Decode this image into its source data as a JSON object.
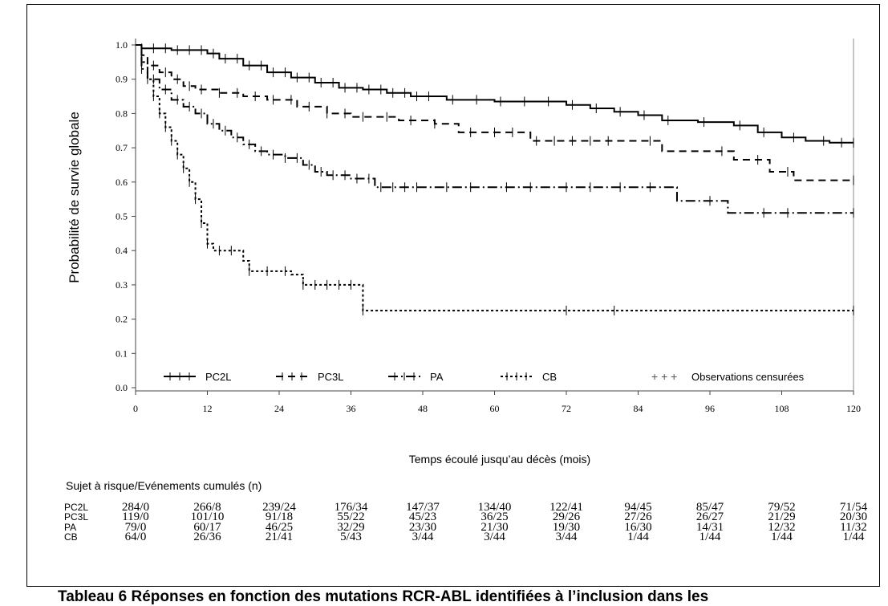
{
  "chart_data": {
    "type": "line",
    "step": true,
    "xlabel": "Temps écoulé jusqu’au décès (mois)",
    "ylabel": "Probabilité de survie globale",
    "xlim": [
      0,
      120
    ],
    "ylim": [
      0,
      1.0
    ],
    "xticks": [
      "0",
      "12",
      "24",
      "36",
      "48",
      "60",
      "72",
      "84",
      "96",
      "108",
      "120"
    ],
    "yticks": [
      "0.0",
      "0.1",
      "0.2",
      "0.3",
      "0.4",
      "0.5",
      "0.6",
      "0.7",
      "0.8",
      "0.9",
      "1.0"
    ],
    "legend": {
      "placement": "bottom-inside",
      "entries": [
        "PC2L",
        "PC3L",
        "PA",
        "CB",
        "Observations censurées"
      ],
      "symbol": "+ + +"
    },
    "series": [
      {
        "name": "PC2L",
        "style": "solid",
        "points": [
          [
            0,
            1.0
          ],
          [
            1,
            0.99
          ],
          [
            6,
            0.985
          ],
          [
            12,
            0.975
          ],
          [
            14,
            0.96
          ],
          [
            18,
            0.94
          ],
          [
            22,
            0.92
          ],
          [
            26,
            0.905
          ],
          [
            30,
            0.89
          ],
          [
            34,
            0.875
          ],
          [
            38,
            0.87
          ],
          [
            42,
            0.86
          ],
          [
            46,
            0.85
          ],
          [
            52,
            0.84
          ],
          [
            60,
            0.835
          ],
          [
            66,
            0.835
          ],
          [
            72,
            0.825
          ],
          [
            76,
            0.815
          ],
          [
            80,
            0.805
          ],
          [
            84,
            0.795
          ],
          [
            88,
            0.78
          ],
          [
            94,
            0.775
          ],
          [
            100,
            0.765
          ],
          [
            104,
            0.745
          ],
          [
            108,
            0.73
          ],
          [
            112,
            0.72
          ],
          [
            116,
            0.715
          ],
          [
            120,
            0.715
          ]
        ],
        "censored": [
          1,
          3,
          5,
          7,
          9,
          11,
          13,
          15,
          17,
          19,
          21,
          23,
          25,
          27,
          29,
          31,
          33,
          35,
          37,
          39,
          41,
          43,
          45,
          47,
          49,
          53,
          57,
          61,
          65,
          69,
          73,
          77,
          81,
          85,
          89,
          95,
          101,
          105,
          110,
          115,
          118,
          120
        ]
      },
      {
        "name": "PC3L",
        "style": "dashed",
        "points": [
          [
            0,
            1.0
          ],
          [
            1,
            0.97
          ],
          [
            2,
            0.94
          ],
          [
            4,
            0.92
          ],
          [
            6,
            0.9
          ],
          [
            8,
            0.88
          ],
          [
            10,
            0.87
          ],
          [
            14,
            0.86
          ],
          [
            18,
            0.85
          ],
          [
            22,
            0.84
          ],
          [
            27,
            0.82
          ],
          [
            32,
            0.8
          ],
          [
            36,
            0.79
          ],
          [
            44,
            0.78
          ],
          [
            50,
            0.77
          ],
          [
            54,
            0.745
          ],
          [
            60,
            0.745
          ],
          [
            66,
            0.72
          ],
          [
            72,
            0.72
          ],
          [
            88,
            0.69
          ],
          [
            100,
            0.665
          ],
          [
            106,
            0.63
          ],
          [
            110,
            0.605
          ],
          [
            120,
            0.605
          ]
        ],
        "censored": [
          1,
          3,
          5,
          7,
          9,
          11,
          14,
          17,
          20,
          23,
          26,
          29,
          32,
          35,
          38,
          42,
          46,
          50,
          56,
          60,
          63,
          67,
          70,
          73,
          76,
          79,
          86,
          98,
          104,
          109,
          120
        ]
      },
      {
        "name": "PA",
        "style": "dashdot",
        "points": [
          [
            0,
            1.0
          ],
          [
            1,
            0.93
          ],
          [
            2,
            0.9
          ],
          [
            4,
            0.87
          ],
          [
            6,
            0.84
          ],
          [
            8,
            0.82
          ],
          [
            10,
            0.8
          ],
          [
            12,
            0.77
          ],
          [
            14,
            0.75
          ],
          [
            16,
            0.73
          ],
          [
            18,
            0.71
          ],
          [
            20,
            0.69
          ],
          [
            22,
            0.68
          ],
          [
            25,
            0.67
          ],
          [
            28,
            0.65
          ],
          [
            30,
            0.63
          ],
          [
            32,
            0.62
          ],
          [
            36,
            0.61
          ],
          [
            40,
            0.585
          ],
          [
            50,
            0.585
          ],
          [
            90,
            0.585
          ],
          [
            90.5,
            0.545
          ],
          [
            99,
            0.51
          ],
          [
            120,
            0.51
          ]
        ],
        "censored": [
          1,
          3,
          5,
          7,
          9,
          11,
          13,
          15,
          17,
          19,
          21,
          23,
          25,
          27,
          29,
          31,
          33,
          35,
          37,
          39,
          41,
          43,
          45,
          47,
          52,
          56,
          62,
          66,
          72,
          76,
          81,
          86,
          96,
          105,
          109,
          120
        ]
      },
      {
        "name": "CB",
        "style": "dotted",
        "points": [
          [
            0,
            1.0
          ],
          [
            1,
            0.95
          ],
          [
            2,
            0.9
          ],
          [
            3,
            0.85
          ],
          [
            4,
            0.8
          ],
          [
            5,
            0.76
          ],
          [
            6,
            0.72
          ],
          [
            7,
            0.68
          ],
          [
            8,
            0.64
          ],
          [
            9,
            0.6
          ],
          [
            10,
            0.55
          ],
          [
            11,
            0.48
          ],
          [
            12,
            0.42
          ],
          [
            13,
            0.4
          ],
          [
            18,
            0.37
          ],
          [
            19,
            0.34
          ],
          [
            26,
            0.33
          ],
          [
            28,
            0.3
          ],
          [
            38,
            0.225
          ],
          [
            120,
            0.225
          ]
        ],
        "censored": [
          1,
          2,
          3,
          4,
          5,
          6,
          7,
          8,
          9,
          10,
          11,
          12,
          14,
          16,
          19,
          22,
          25,
          28,
          30,
          32,
          34,
          36,
          38,
          72,
          80,
          120
        ]
      }
    ]
  },
  "risk_table": {
    "title": "Sujet à risque/Evénements cumulés (n)",
    "rows": [
      {
        "label": "PC2L",
        "values": [
          "284/0",
          "266/8",
          "239/24",
          "176/34",
          "147/37",
          "134/40",
          "122/41",
          "94/45",
          "85/47",
          "79/52",
          "71/54"
        ]
      },
      {
        "label": "PC3L",
        "values": [
          "119/0",
          "101/10",
          "91/18",
          "55/22",
          "45/23",
          "36/25",
          "29/26",
          "27/26",
          "26/27",
          "21/29",
          "20/30"
        ]
      },
      {
        "label": "PA",
        "values": [
          "79/0",
          "60/17",
          "46/25",
          "32/29",
          "23/30",
          "21/30",
          "19/30",
          "16/30",
          "14/31",
          "12/32",
          "11/32"
        ]
      },
      {
        "label": "CB",
        "values": [
          "64/0",
          "26/36",
          "21/41",
          "5/43",
          "3/44",
          "3/44",
          "3/44",
          "1/44",
          "1/44",
          "1/44",
          "1/44"
        ]
      }
    ]
  },
  "caption": "Tableau 6 Réponses en fonction des mutations RCR-ABL identifiées à l’inclusion dans les"
}
